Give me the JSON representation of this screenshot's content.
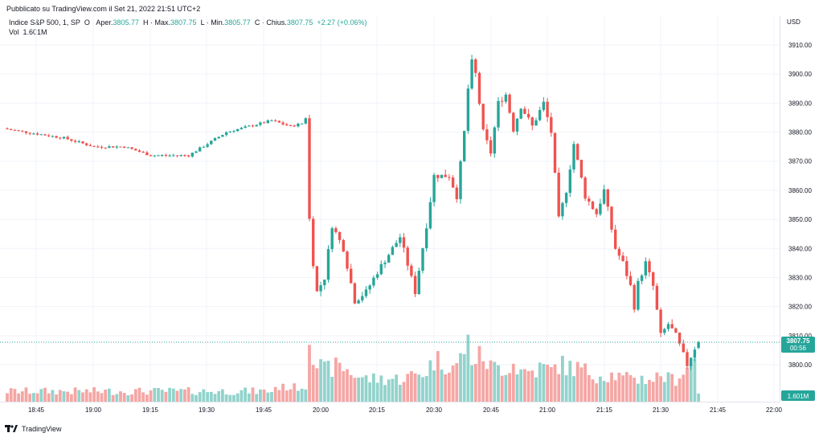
{
  "header": {
    "published": "Pubblicato su TradingView.com il Set 21, 2022 21:51 UTC+2",
    "currency": "USD"
  },
  "legend": {
    "symbol": "Indice S&P 500, 1, SP",
    "open_label": "O · Aper.",
    "open_value": "3805.77",
    "high_label": "H · Max.",
    "high_value": "3807.75",
    "low_label": "L · Min.",
    "low_value": "3805.77",
    "close_label": "C · Chius.",
    "close_value": "3807.75",
    "change_value": "+2.27 (+0.06%)",
    "volume_label": "Vol",
    "volume_value": "1.601M"
  },
  "price_marker": {
    "price": "3807.75",
    "countdown": "00:56"
  },
  "volume_marker": "1.601M",
  "footer": {
    "brand": "TradingView"
  },
  "colors": {
    "up": "#26a69a",
    "down": "#ef5350",
    "up_volume": "#92d3cc",
    "down_volume": "#f5a6a4",
    "grid": "#f0f3fa",
    "price_line": "#26a69a"
  },
  "chart_data": {
    "type": "candlestick",
    "symbol": "Indice S&P 500",
    "interval": "1",
    "y_axis": {
      "position": "right",
      "ticks": [
        3800,
        3810,
        3820,
        3830,
        3840,
        3850,
        3860,
        3870,
        3880,
        3890,
        3900,
        3910
      ],
      "ylim": [
        3790,
        3920
      ]
    },
    "x_axis": {
      "tick_labels": [
        "18:45",
        "19:00",
        "19:15",
        "19:30",
        "19:45",
        "20:00",
        "20:15",
        "20:30",
        "20:45",
        "21:00",
        "21:15",
        "21:30",
        "21:45",
        "22:00"
      ]
    },
    "grid": true,
    "last_price": 3807.75,
    "anchors": [
      [
        0,
        3881,
        0
      ],
      [
        15,
        3878,
        0.2
      ],
      [
        23,
        3875,
        0.15
      ],
      [
        31,
        3875,
        0.2
      ],
      [
        38,
        3872,
        0.12
      ],
      [
        48,
        3872,
        0.12
      ],
      [
        58,
        3880,
        0.2
      ],
      [
        70,
        3884,
        0.25
      ],
      [
        75,
        3882,
        0.18
      ],
      [
        78,
        3883,
        0.18
      ],
      [
        79,
        3885,
        0.2
      ],
      [
        80,
        3850,
        1.0
      ],
      [
        81,
        3835,
        0.7
      ],
      [
        82,
        3825,
        0.5
      ],
      [
        84,
        3830,
        0.4
      ],
      [
        86,
        3848,
        0.45
      ],
      [
        89,
        3840,
        0.45
      ],
      [
        92,
        3822,
        0.35
      ],
      [
        95,
        3825,
        0.3
      ],
      [
        98,
        3832,
        0.3
      ],
      [
        104,
        3844,
        0.3
      ],
      [
        108,
        3825,
        0.35
      ],
      [
        111,
        3848,
        0.4
      ],
      [
        113,
        3865,
        0.55
      ],
      [
        117,
        3865,
        0.5
      ],
      [
        119,
        3858,
        0.45
      ],
      [
        121,
        3880,
        0.7
      ],
      [
        122,
        3895,
        0.75
      ],
      [
        123,
        3904,
        0.6
      ],
      [
        124,
        3900,
        0.55
      ],
      [
        126,
        3880,
        0.6
      ],
      [
        128,
        3873,
        0.45
      ],
      [
        130,
        3890,
        0.45
      ],
      [
        132,
        3893,
        0.45
      ],
      [
        134,
        3881,
        0.5
      ],
      [
        136,
        3889,
        0.4
      ],
      [
        139,
        3882,
        0.4
      ],
      [
        142,
        3890,
        0.45
      ],
      [
        144,
        3880,
        0.4
      ],
      [
        146,
        3850,
        0.5
      ],
      [
        148,
        3860,
        0.45
      ],
      [
        150,
        3876,
        0.45
      ],
      [
        153,
        3858,
        0.4
      ],
      [
        156,
        3852,
        0.35
      ],
      [
        158,
        3860,
        0.35
      ],
      [
        161,
        3840,
        0.35
      ],
      [
        163,
        3835,
        0.3
      ],
      [
        165,
        3827,
        0.3
      ],
      [
        166,
        3820,
        0.35
      ],
      [
        167,
        3828,
        0.3
      ],
      [
        169,
        3835,
        0.3
      ],
      [
        171,
        3827,
        0.3
      ],
      [
        173,
        3810,
        0.35
      ],
      [
        175,
        3814,
        0.3
      ],
      [
        177,
        3810,
        0.3
      ],
      [
        180,
        3800,
        0.45
      ],
      [
        182,
        3805.77,
        0.55
      ],
      [
        183,
        3807.75,
        0.1
      ]
    ]
  }
}
